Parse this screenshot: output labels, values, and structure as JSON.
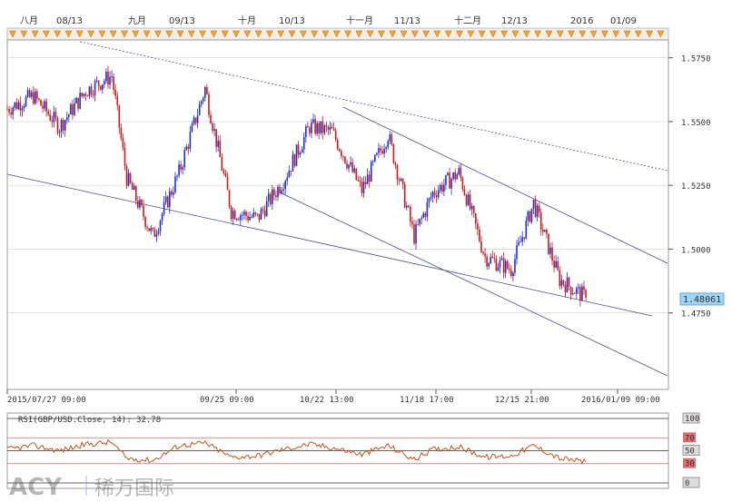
{
  "chart_data": [
    {
      "type": "line",
      "title": "",
      "subtitle": "",
      "series": [
        {
          "x": [
            "2015-07-27",
            "2015-08-03",
            "2015-08-10",
            "2015-08-17",
            "2015-08-24",
            "2015-08-28",
            "2015-09-04",
            "2015-09-11",
            "2015-09-18",
            "2015-09-25",
            "2015-10-02",
            "2015-10-09",
            "2015-10-16",
            "2015-10-22",
            "2015-10-30",
            "2015-11-06",
            "2015-11-13",
            "2015-11-18",
            "2015-11-25",
            "2015-12-02",
            "2015-12-09",
            "2015-12-15",
            "2015-12-22",
            "2015-12-29"
          ],
          "y": [
            1.555,
            1.56,
            1.548,
            1.562,
            1.568,
            1.528,
            1.505,
            1.53,
            1.563,
            1.515,
            1.512,
            1.527,
            1.548,
            1.546,
            1.523,
            1.545,
            1.505,
            1.522,
            1.53,
            1.497,
            1.492,
            1.518,
            1.488,
            1.481
          ]
        }
      ],
      "x_tick_labels_top": [
        "八月",
        "08/13",
        "九月",
        "09/13",
        "十月",
        "10/13",
        "十一月",
        "11/13",
        "十二月",
        "12/13",
        "2016",
        "01/09"
      ],
      "x_tick_labels_bottom": [
        "2015/07/27 09:00",
        "09/25 09:00",
        "10/22 13:00",
        "11/18 17:00",
        "12/15 21:00",
        "2016/01/09 09:00"
      ],
      "y_tick_labels": [
        "1.5750",
        "1.5500",
        "1.5250",
        "1.5000",
        "1.4750"
      ],
      "ylim": [
        1.445,
        1.582
      ],
      "current_price": "1.48061",
      "colors": {
        "up": "#1f2ecc",
        "down": "#cc1a1a",
        "trend": "#4a4f8c",
        "price_tag": "#9fd4f5",
        "grid": "#cfcfcf"
      },
      "grid": true
    },
    {
      "type": "line",
      "legend": "RSI(GBP/USD.Close, 14): 32.78",
      "series": [
        {
          "x": [
            "2015-07-27",
            "2015-08-03",
            "2015-08-10",
            "2015-08-17",
            "2015-08-24",
            "2015-08-28",
            "2015-09-04",
            "2015-09-11",
            "2015-09-18",
            "2015-09-25",
            "2015-10-02",
            "2015-10-09",
            "2015-10-16",
            "2015-10-22",
            "2015-10-30",
            "2015-11-06",
            "2015-11-13",
            "2015-11-18",
            "2015-11-25",
            "2015-12-02",
            "2015-12-09",
            "2015-12-15",
            "2015-12-22",
            "2015-12-29"
          ],
          "y": [
            52,
            58,
            50,
            60,
            63,
            38,
            35,
            58,
            62,
            40,
            42,
            52,
            60,
            55,
            44,
            58,
            36,
            52,
            56,
            40,
            42,
            58,
            38,
            33
          ]
        }
      ],
      "y_tick_labels": [
        "100",
        "70",
        "50",
        "30",
        "0"
      ],
      "ylim": [
        0,
        100
      ],
      "levels": [
        100,
        70,
        50,
        30,
        0
      ],
      "colors": {
        "rsi": "#c0541c",
        "band": "#d98080",
        "box": "#7a7a7a"
      }
    }
  ],
  "watermark": {
    "brand": "ACY",
    "chinese": "稀万国际"
  }
}
